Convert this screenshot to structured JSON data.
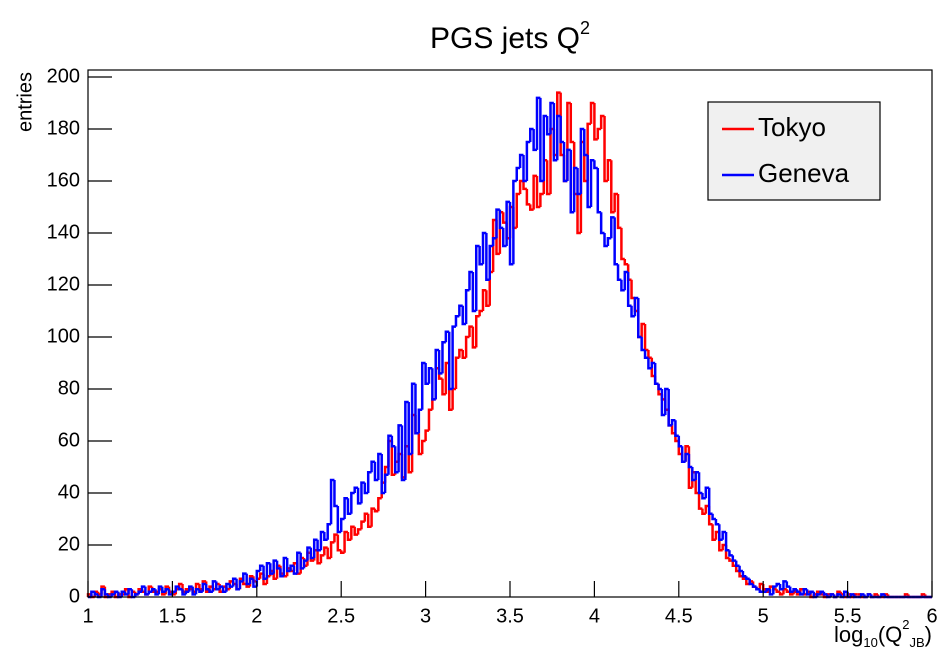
{
  "chart_data": {
    "type": "histogram",
    "title": {
      "text": "PGS jets Q",
      "sup": "2"
    },
    "ylabel": "entries",
    "xlabel": [
      {
        "text": "log",
        "pos": "base"
      },
      {
        "text": "10",
        "pos": "sub"
      },
      {
        "text": "(Q",
        "pos": "base"
      },
      {
        "text": "2",
        "pos": "sup"
      },
      {
        "text": "JB",
        "pos": "sub"
      },
      {
        "text": ")",
        "pos": "base"
      }
    ],
    "xlim": [
      1,
      6
    ],
    "ylim": [
      0,
      202.7
    ],
    "xticks": [
      1,
      1.5,
      2,
      2.5,
      3,
      3.5,
      4,
      4.5,
      5,
      5.5,
      6
    ],
    "yticks": [
      0,
      20,
      40,
      60,
      80,
      100,
      120,
      140,
      160,
      180,
      200
    ],
    "grid": false,
    "legend": "top-right",
    "bins": [
      1,
      1.02,
      1.04,
      1.06,
      1.08,
      1.1,
      1.12,
      1.14,
      1.16,
      1.18,
      1.2,
      1.22,
      1.24,
      1.26,
      1.28,
      1.3,
      1.32,
      1.34,
      1.36,
      1.38,
      1.4,
      1.42,
      1.44,
      1.46,
      1.48,
      1.5,
      1.52,
      1.54,
      1.56,
      1.58,
      1.6,
      1.62,
      1.64,
      1.66,
      1.68,
      1.7,
      1.72,
      1.74,
      1.76,
      1.78,
      1.8,
      1.82,
      1.84,
      1.86,
      1.88,
      1.9,
      1.92,
      1.94,
      1.96,
      1.98,
      2,
      2.02,
      2.04,
      2.06,
      2.08,
      2.1,
      2.12,
      2.14,
      2.16,
      2.18,
      2.2,
      2.22,
      2.24,
      2.26,
      2.28,
      2.3,
      2.32,
      2.34,
      2.36,
      2.38,
      2.4,
      2.42,
      2.44,
      2.46,
      2.48,
      2.5,
      2.52,
      2.54,
      2.56,
      2.58,
      2.6,
      2.62,
      2.64,
      2.66,
      2.68,
      2.7,
      2.72,
      2.74,
      2.76,
      2.78,
      2.8,
      2.82,
      2.84,
      2.86,
      2.88,
      2.9,
      2.92,
      2.94,
      2.96,
      2.98,
      3,
      3.02,
      3.04,
      3.06,
      3.08,
      3.1,
      3.12,
      3.14,
      3.16,
      3.18,
      3.2,
      3.22,
      3.24,
      3.26,
      3.28,
      3.3,
      3.32,
      3.34,
      3.36,
      3.38,
      3.4,
      3.42,
      3.44,
      3.46,
      3.48,
      3.5,
      3.52,
      3.54,
      3.56,
      3.58,
      3.6,
      3.62,
      3.64,
      3.66,
      3.68,
      3.7,
      3.72,
      3.74,
      3.76,
      3.78,
      3.8,
      3.82,
      3.84,
      3.86,
      3.88,
      3.9,
      3.92,
      3.94,
      3.96,
      3.98,
      4,
      4.02,
      4.04,
      4.06,
      4.08,
      4.1,
      4.12,
      4.14,
      4.16,
      4.18,
      4.2,
      4.22,
      4.24,
      4.26,
      4.28,
      4.3,
      4.32,
      4.34,
      4.36,
      4.38,
      4.4,
      4.42,
      4.44,
      4.46,
      4.48,
      4.5,
      4.52,
      4.54,
      4.56,
      4.58,
      4.6,
      4.62,
      4.64,
      4.66,
      4.68,
      4.7,
      4.72,
      4.74,
      4.76,
      4.78,
      4.8,
      4.82,
      4.84,
      4.86,
      4.88,
      4.9,
      4.92,
      4.94,
      4.96,
      4.98,
      5,
      5.02,
      5.04,
      5.06,
      5.08,
      5.1,
      5.12,
      5.14,
      5.16,
      5.18,
      5.2,
      5.22,
      5.24,
      5.26,
      5.28,
      5.3,
      5.32,
      5.34,
      5.36,
      5.38,
      5.4,
      5.42,
      5.44,
      5.46,
      5.48,
      5.5,
      5.52,
      5.54,
      5.56,
      5.58,
      5.6,
      5.62,
      5.64,
      5.66,
      5.68,
      5.7,
      5.72,
      5.74,
      5.76,
      5.78,
      5.8,
      5.82,
      5.84,
      5.86,
      5.88,
      5.9,
      5.92,
      5.94,
      5.96,
      5.98,
      6
    ],
    "series": [
      {
        "name": "Tokyo",
        "color": "#ff0000",
        "values": [
          1,
          0,
          2,
          1,
          4,
          0,
          1,
          2,
          0,
          1,
          1,
          3,
          0,
          2,
          1,
          3,
          2,
          1,
          4,
          2,
          2,
          3,
          1,
          4,
          2,
          1,
          3,
          5,
          2,
          3,
          3,
          2,
          5,
          3,
          6,
          2,
          4,
          3,
          5,
          2,
          4,
          3,
          6,
          5,
          3,
          7,
          5,
          4,
          8,
          6,
          7,
          9,
          5,
          8,
          10,
          7,
          12,
          9,
          8,
          11,
          10,
          13,
          9,
          15,
          12,
          17,
          14,
          18,
          13,
          16,
          19,
          15,
          21,
          24,
          18,
          17,
          25,
          22,
          27,
          24,
          26,
          29,
          32,
          27,
          34,
          33,
          38,
          44,
          50,
          60,
          47,
          52,
          55,
          46,
          58,
          48,
          70,
          63,
          55,
          60,
          64,
          72,
          76,
          88,
          84,
          78,
          90,
          72,
          80,
          92,
          95,
          92,
          100,
          104,
          96,
          108,
          110,
          118,
          112,
          125,
          145,
          132,
          148,
          144,
          138,
          150,
          142,
          155,
          160,
          157,
          151,
          149,
          162,
          150,
          155,
          168,
          155,
          180,
          170,
          194,
          170,
          160,
          190,
          175,
          155,
          140,
          175,
          160,
          182,
          190,
          176,
          180,
          185,
          160,
          168,
          148,
          155,
          142,
          130,
          128,
          122,
          115,
          110,
          100,
          105,
          95,
          92,
          85,
          82,
          78,
          76,
          72,
          66,
          63,
          60,
          55,
          52,
          58,
          42,
          48,
          40,
          34,
          32,
          35,
          28,
          22,
          25,
          18,
          20,
          15,
          14,
          12,
          10,
          8,
          7,
          5,
          6,
          4,
          3,
          5,
          3,
          2,
          4,
          3,
          2,
          1,
          3,
          2,
          1,
          2,
          1,
          3,
          1,
          2,
          0,
          1,
          2,
          1,
          0,
          1,
          1,
          0,
          2,
          1,
          0,
          1,
          0,
          1,
          1,
          0,
          0,
          1,
          0,
          1,
          0,
          0,
          1,
          0,
          0,
          0,
          0,
          0,
          1,
          0,
          0,
          0,
          0,
          1,
          0,
          0
        ]
      },
      {
        "name": "Geneva",
        "color": "#0000ff",
        "values": [
          0,
          2,
          1,
          0,
          3,
          1,
          0,
          1,
          2,
          0,
          2,
          1,
          3,
          0,
          1,
          2,
          4,
          1,
          2,
          3,
          1,
          4,
          2,
          3,
          1,
          2,
          4,
          3,
          1,
          2,
          4,
          1,
          3,
          2,
          5,
          3,
          2,
          6,
          3,
          4,
          2,
          5,
          4,
          7,
          3,
          6,
          9,
          5,
          7,
          4,
          10,
          12,
          7,
          13,
          9,
          14,
          11,
          8,
          15,
          10,
          12,
          9,
          17,
          11,
          14,
          19,
          15,
          22,
          18,
          25,
          22,
          28,
          45,
          35,
          25,
          30,
          38,
          32,
          40,
          42,
          36,
          44,
          40,
          48,
          52,
          45,
          55,
          40,
          47,
          62,
          58,
          48,
          66,
          45,
          75,
          55,
          82,
          63,
          72,
          90,
          82,
          88,
          76,
          95,
          86,
          98,
          102,
          80,
          104,
          108,
          112,
          105,
          118,
          125,
          110,
          135,
          128,
          140,
          122,
          135,
          138,
          149,
          142,
          135,
          152,
          128,
          160,
          165,
          170,
          160,
          175,
          180,
          172,
          192,
          160,
          185,
          178,
          190,
          168,
          185,
          175,
          160,
          172,
          148,
          165,
          155,
          180,
          170,
          150,
          168,
          165,
          148,
          140,
          135,
          138,
          146,
          128,
          122,
          118,
          125,
          112,
          108,
          115,
          100,
          95,
          92,
          88,
          90,
          82,
          80,
          70,
          80,
          66,
          68,
          62,
          58,
          52,
          55,
          50,
          45,
          48,
          40,
          38,
          42,
          32,
          30,
          28,
          22,
          25,
          18,
          16,
          14,
          12,
          10,
          8,
          7,
          5,
          4,
          3,
          2,
          2,
          3,
          1,
          4,
          5,
          3,
          6,
          4,
          2,
          3,
          2,
          1,
          3,
          1,
          2,
          0,
          1,
          2,
          1,
          0,
          1,
          0,
          1,
          0,
          2,
          0,
          1,
          0,
          0,
          1,
          0,
          1,
          0,
          0,
          0,
          1,
          0,
          0,
          0,
          0,
          0,
          0,
          0,
          0,
          0,
          0,
          0,
          0,
          0,
          0
        ]
      }
    ]
  }
}
